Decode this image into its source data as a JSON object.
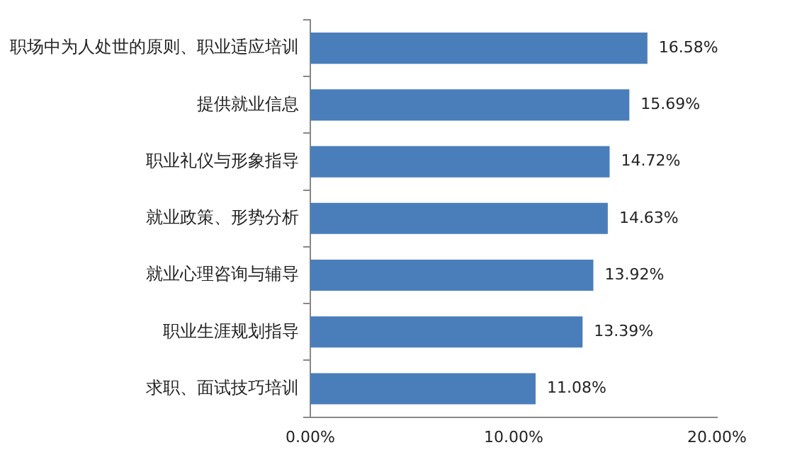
{
  "chart_data": {
    "type": "bar",
    "orientation": "horizontal",
    "categories": [
      "职场中为人处世的原则、职业适应培训",
      "提供就业信息",
      "职业礼仪与形象指导",
      "就业政策、形势分析",
      "就业心理咨询与辅导",
      "职业生涯规划指导",
      "求职、面试技巧培训"
    ],
    "values": [
      16.58,
      15.69,
      14.72,
      14.63,
      13.92,
      13.39,
      11.08
    ],
    "value_labels": [
      "16.58%",
      "15.69%",
      "14.72%",
      "14.63%",
      "13.92%",
      "13.39%",
      "11.08%"
    ],
    "color": "#4a7ebb",
    "xlim": [
      0,
      20
    ],
    "xticks": [
      {
        "value": 0,
        "label": "0.00%"
      },
      {
        "value": 10,
        "label": "10.00%"
      },
      {
        "value": 20,
        "label": "20.00%"
      }
    ],
    "grid": false,
    "legend": false
  }
}
